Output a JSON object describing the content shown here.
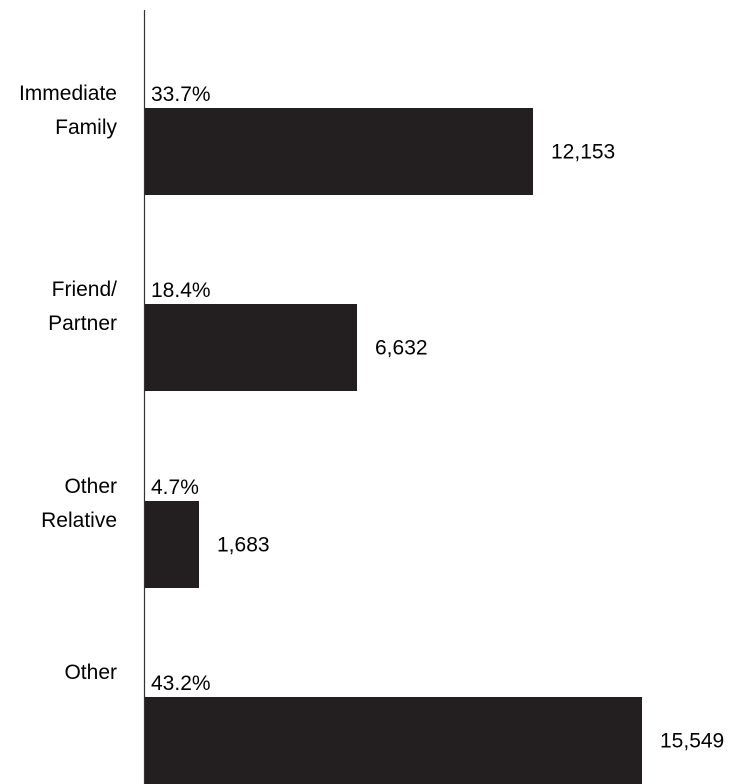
{
  "chart_data": {
    "type": "bar",
    "orientation": "horizontal",
    "categories": [
      [
        "Immediate",
        "Family"
      ],
      [
        "Friend/",
        "Partner"
      ],
      [
        "Other",
        "Relative"
      ],
      [
        "Other"
      ]
    ],
    "values": [
      12153,
      6632,
      1683,
      15549
    ],
    "value_labels": [
      "12,153",
      "6,632",
      "1,683",
      "15,549"
    ],
    "percent_labels": [
      "33.7%",
      "18.4%",
      "4.7%",
      "43.2%"
    ],
    "xlim": [
      0,
      15549
    ],
    "grid": false,
    "colors": {
      "bar": "#231f20",
      "axis": "#333333",
      "text": "#000000"
    }
  }
}
